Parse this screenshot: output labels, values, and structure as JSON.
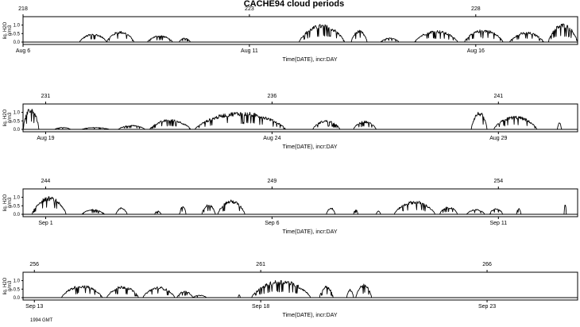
{
  "title": "CACHE94 cloud periods",
  "footnote": "1994 GMT",
  "chart_data": [
    {
      "type": "line",
      "title": "CACHE94 cloud periods",
      "xlabel": "Time(DATE), incr:DAY",
      "ylabel": "liq. H2O g/m3",
      "ylabel_lines": [
        "liq. H2O",
        "g/m3"
      ],
      "xlim_doy": [
        218,
        230.25
      ],
      "ylim": [
        -0.1,
        1.4
      ],
      "yticks": [
        0.0,
        0.5,
        1.0
      ],
      "ytick_labels": [
        "0.0",
        "0.5",
        "1.0"
      ],
      "top_ticks": [
        {
          "doy": 218,
          "label": "218"
        },
        {
          "doy": 223,
          "label": "223"
        },
        {
          "doy": 228,
          "label": "228"
        }
      ],
      "bottom_ticks": [
        {
          "doy": 218,
          "label": "Aug 6"
        },
        {
          "doy": 223,
          "label": "Aug 11"
        },
        {
          "doy": 228,
          "label": "Aug 16"
        }
      ],
      "segments": [
        {
          "start": 219.25,
          "end": 219.85,
          "peak": 0.5
        },
        {
          "start": 219.85,
          "end": 220.45,
          "peak": 0.65
        },
        {
          "start": 220.75,
          "end": 221.3,
          "peak": 0.4
        },
        {
          "start": 221.45,
          "end": 221.7,
          "peak": 0.25
        },
        {
          "start": 224.1,
          "end": 225.1,
          "peak": 1.05
        },
        {
          "start": 225.25,
          "end": 225.6,
          "peak": 0.7
        },
        {
          "start": 225.9,
          "end": 226.3,
          "peak": 0.25
        },
        {
          "start": 226.65,
          "end": 227.6,
          "peak": 0.7
        },
        {
          "start": 227.75,
          "end": 228.6,
          "peak": 0.75
        },
        {
          "start": 228.75,
          "end": 229.5,
          "peak": 0.6
        },
        {
          "start": 229.6,
          "end": 230.25,
          "peak": 1.1
        }
      ]
    },
    {
      "type": "line",
      "title": "",
      "xlabel": "Time(DATE), incr:DAY",
      "ylabel": "liq. H2O g/m3",
      "ylabel_lines": [
        "liq. H2O",
        "g/m3"
      ],
      "xlim_doy": [
        230.5,
        242.75
      ],
      "ylim": [
        -0.1,
        1.4
      ],
      "yticks": [
        0.0,
        0.5,
        1.0
      ],
      "ytick_labels": [
        "0.0",
        "0.5",
        "1.0"
      ],
      "top_ticks": [
        {
          "doy": 231,
          "label": "231"
        },
        {
          "doy": 236,
          "label": "236"
        },
        {
          "doy": 241,
          "label": "241"
        }
      ],
      "bottom_ticks": [
        {
          "doy": 231,
          "label": "Aug 19"
        },
        {
          "doy": 236,
          "label": "Aug 24"
        },
        {
          "doy": 241,
          "label": "Aug 29"
        }
      ],
      "segments": [
        {
          "start": 230.5,
          "end": 230.85,
          "peak": 1.3
        },
        {
          "start": 231.2,
          "end": 231.55,
          "peak": 0.12
        },
        {
          "start": 231.8,
          "end": 232.4,
          "peak": 0.12
        },
        {
          "start": 232.6,
          "end": 233.2,
          "peak": 0.25
        },
        {
          "start": 233.3,
          "end": 234.2,
          "peak": 0.6
        },
        {
          "start": 234.3,
          "end": 236.3,
          "peak": 1.05
        },
        {
          "start": 236.9,
          "end": 237.5,
          "peak": 0.55
        },
        {
          "start": 237.8,
          "end": 238.3,
          "peak": 0.5
        },
        {
          "start": 240.4,
          "end": 240.75,
          "peak": 1.05
        },
        {
          "start": 240.9,
          "end": 241.85,
          "peak": 0.8
        },
        {
          "start": 242.3,
          "end": 242.4,
          "peak": 0.4
        }
      ]
    },
    {
      "type": "line",
      "title": "",
      "xlabel": "Time(DATE), incr:DAY",
      "ylabel": "liq. H2O g/m3",
      "ylabel_lines": [
        "liq. H2O",
        "g/m3"
      ],
      "xlim_doy": [
        243.5,
        255.75
      ],
      "ylim": [
        -0.1,
        1.4
      ],
      "yticks": [
        0.0,
        0.5,
        1.0
      ],
      "ytick_labels": [
        "0.0",
        "0.5",
        "1.0"
      ],
      "top_ticks": [
        {
          "doy": 244,
          "label": "244"
        },
        {
          "doy": 249,
          "label": "249"
        },
        {
          "doy": 254,
          "label": "254"
        }
      ],
      "bottom_ticks": [
        {
          "doy": 244,
          "label": "Sep 1"
        },
        {
          "doy": 249,
          "label": "Sep 6"
        },
        {
          "doy": 254,
          "label": "Sep 11"
        }
      ],
      "segments": [
        {
          "start": 243.7,
          "end": 244.45,
          "peak": 1.05
        },
        {
          "start": 244.8,
          "end": 245.3,
          "peak": 0.3
        },
        {
          "start": 245.55,
          "end": 245.8,
          "peak": 0.4
        },
        {
          "start": 246.4,
          "end": 246.55,
          "peak": 0.2
        },
        {
          "start": 246.95,
          "end": 247.1,
          "peak": 0.5
        },
        {
          "start": 247.45,
          "end": 247.75,
          "peak": 0.6
        },
        {
          "start": 247.8,
          "end": 248.4,
          "peak": 0.85
        },
        {
          "start": 250.2,
          "end": 250.4,
          "peak": 0.4
        },
        {
          "start": 250.8,
          "end": 250.9,
          "peak": 0.3
        },
        {
          "start": 251.3,
          "end": 251.4,
          "peak": 0.2
        },
        {
          "start": 251.7,
          "end": 252.6,
          "peak": 0.8
        },
        {
          "start": 252.7,
          "end": 253.1,
          "peak": 0.45
        },
        {
          "start": 253.3,
          "end": 253.7,
          "peak": 0.3
        },
        {
          "start": 253.8,
          "end": 254.1,
          "peak": 0.35
        },
        {
          "start": 254.4,
          "end": 254.5,
          "peak": 0.35
        },
        {
          "start": 255.45,
          "end": 255.5,
          "peak": 0.6
        }
      ]
    },
    {
      "type": "line",
      "title": "",
      "xlabel": "Time(DATE), incr:DAY",
      "ylabel": "liq. H2O g/m3",
      "ylabel_lines": [
        "liq. H2O",
        "g/m3"
      ],
      "xlim_doy": [
        255.75,
        268.0
      ],
      "ylim": [
        -0.1,
        1.4
      ],
      "yticks": [
        0.0,
        0.5,
        1.0
      ],
      "ytick_labels": [
        "0.0",
        "0.5",
        "1.0"
      ],
      "top_ticks": [
        {
          "doy": 256,
          "label": "256"
        },
        {
          "doy": 261,
          "label": "261"
        },
        {
          "doy": 266,
          "label": "266"
        }
      ],
      "bottom_ticks": [
        {
          "doy": 256,
          "label": "Sep 13"
        },
        {
          "doy": 261,
          "label": "Sep 18"
        },
        {
          "doy": 266,
          "label": "Sep 23"
        }
      ],
      "segments": [
        {
          "start": 256.6,
          "end": 257.5,
          "peak": 0.75
        },
        {
          "start": 257.6,
          "end": 258.3,
          "peak": 0.7
        },
        {
          "start": 258.4,
          "end": 259.1,
          "peak": 0.65
        },
        {
          "start": 259.15,
          "end": 259.5,
          "peak": 0.4
        },
        {
          "start": 259.5,
          "end": 259.8,
          "peak": 0.15
        },
        {
          "start": 260.5,
          "end": 260.55,
          "peak": 0.2
        },
        {
          "start": 260.8,
          "end": 262.1,
          "peak": 1.05
        },
        {
          "start": 262.3,
          "end": 262.6,
          "peak": 0.7
        },
        {
          "start": 262.9,
          "end": 263.05,
          "peak": 0.5
        },
        {
          "start": 263.1,
          "end": 263.45,
          "peak": 0.8
        }
      ]
    }
  ]
}
